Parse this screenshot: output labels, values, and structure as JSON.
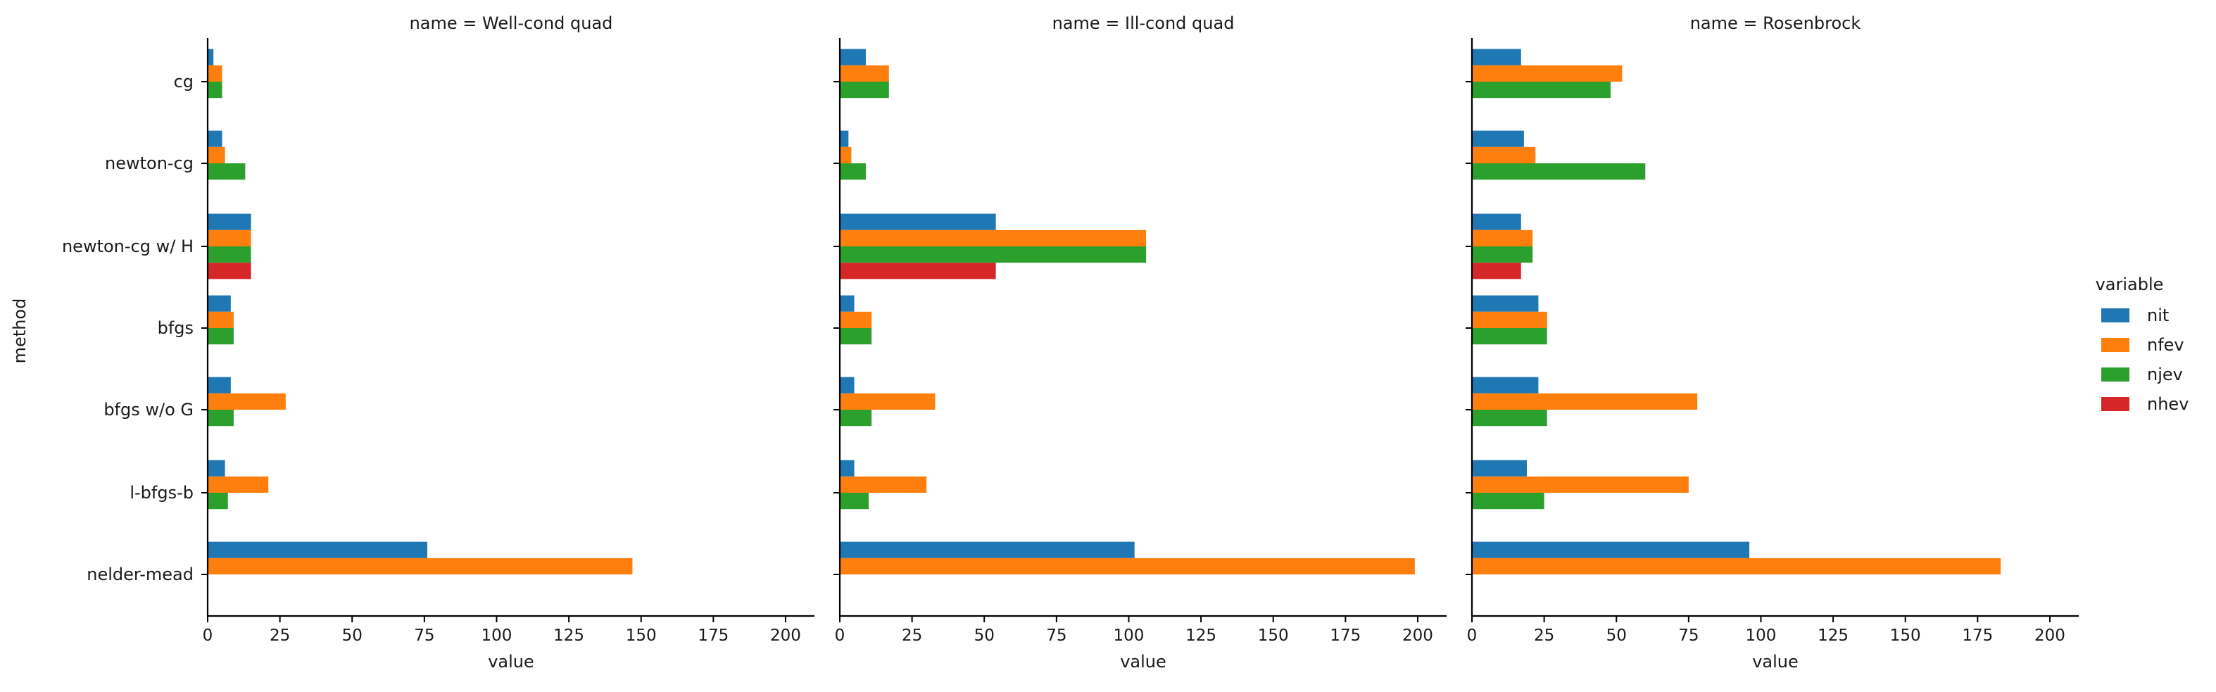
{
  "chart_data": {
    "type": "bar",
    "orientation": "horizontal",
    "ylabel": "method",
    "xlabel": "value",
    "xlim": [
      0,
      210
    ],
    "xticks": [
      0,
      25,
      50,
      75,
      100,
      125,
      150,
      175,
      200
    ],
    "categories": [
      "cg",
      "newton-cg",
      "newton-cg w/ H",
      "bfgs",
      "bfgs w/o G",
      "l-bfgs-b",
      "nelder-mead"
    ],
    "legend": {
      "title": "variable",
      "placement": "right",
      "entries": [
        {
          "name": "nit",
          "color": "#1f77b4"
        },
        {
          "name": "nfev",
          "color": "#ff7f0e"
        },
        {
          "name": "njev",
          "color": "#2ca02c"
        },
        {
          "name": "nhev",
          "color": "#d62728"
        }
      ]
    },
    "facets": [
      {
        "title": "name = Well-cond quad",
        "series": [
          {
            "name": "nit",
            "values": [
              2,
              5,
              15,
              8,
              8,
              6,
              76
            ]
          },
          {
            "name": "nfev",
            "values": [
              5,
              6,
              15,
              9,
              27,
              21,
              147
            ]
          },
          {
            "name": "njev",
            "values": [
              5,
              13,
              15,
              9,
              9,
              7,
              null
            ]
          },
          {
            "name": "nhev",
            "values": [
              null,
              null,
              15,
              null,
              null,
              null,
              null
            ]
          }
        ]
      },
      {
        "title": "name = Ill-cond quad",
        "series": [
          {
            "name": "nit",
            "values": [
              9,
              3,
              54,
              5,
              5,
              5,
              102
            ]
          },
          {
            "name": "nfev",
            "values": [
              17,
              4,
              106,
              11,
              33,
              30,
              199
            ]
          },
          {
            "name": "njev",
            "values": [
              17,
              9,
              106,
              11,
              11,
              10,
              null
            ]
          },
          {
            "name": "nhev",
            "values": [
              null,
              null,
              54,
              null,
              null,
              null,
              null
            ]
          }
        ]
      },
      {
        "title": "name = Rosenbrock",
        "series": [
          {
            "name": "nit",
            "values": [
              17,
              18,
              17,
              23,
              23,
              19,
              96
            ]
          },
          {
            "name": "nfev",
            "values": [
              52,
              22,
              21,
              26,
              78,
              75,
              183
            ]
          },
          {
            "name": "njev",
            "values": [
              48,
              60,
              21,
              26,
              26,
              25,
              null
            ]
          },
          {
            "name": "nhev",
            "values": [
              null,
              null,
              17,
              null,
              null,
              null,
              null
            ]
          }
        ]
      }
    ]
  }
}
